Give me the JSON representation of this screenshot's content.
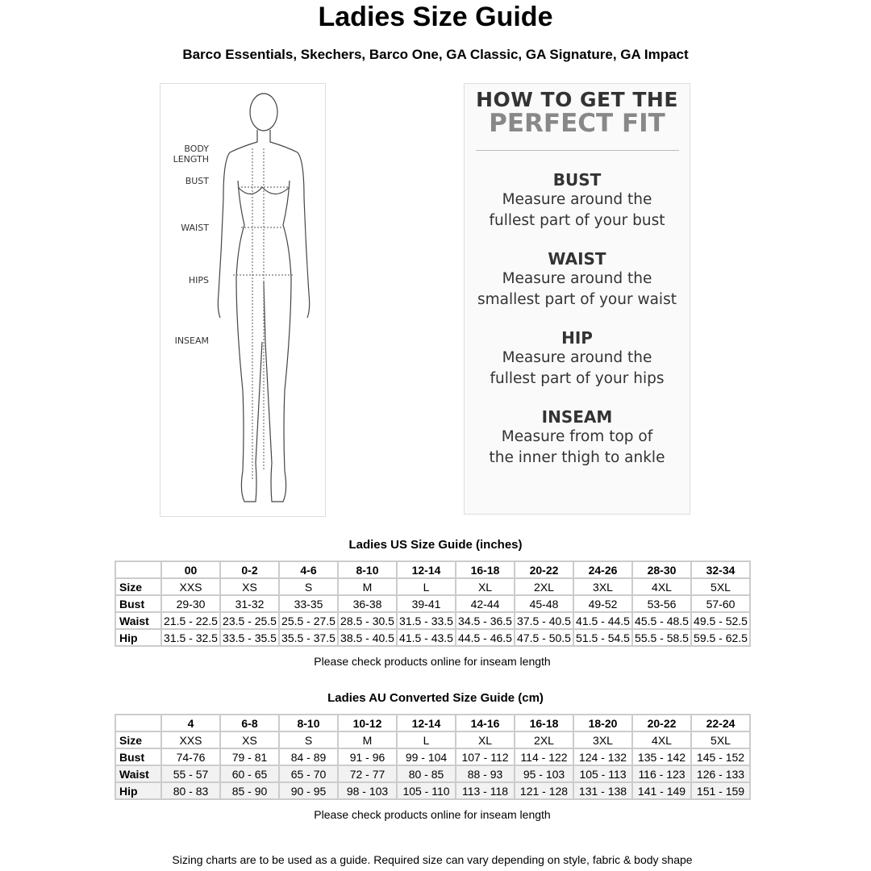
{
  "title": "Ladies Size Guide",
  "subtitle": "Barco Essentials, Skechers, Barco One, GA Classic, GA Signature, GA Impact",
  "figure": {
    "labels": [
      "BODY LENGTH",
      "BUST",
      "WAIST",
      "HIPS",
      "INSEAM"
    ]
  },
  "fit": {
    "heading1": "HOW TO GET THE",
    "heading2": "PERFECT FIT",
    "sections": [
      {
        "title": "BUST",
        "line1": "Measure around the",
        "line2": "fullest part of your bust"
      },
      {
        "title": "WAIST",
        "line1": "Measure around the",
        "line2": "smallest part of your waist"
      },
      {
        "title": "HIP",
        "line1": "Measure around the",
        "line2": "fullest part of your hips"
      },
      {
        "title": "INSEAM",
        "line1": "Measure from top of",
        "line2": "the inner thigh to ankle"
      }
    ]
  },
  "us": {
    "title": "Ladies US Size Guide (inches)",
    "note": "Please check products online for inseam length",
    "header": [
      "00",
      "0-2",
      "4-6",
      "8-10",
      "12-14",
      "16-18",
      "20-22",
      "24-26",
      "28-30",
      "32-34"
    ],
    "rows": [
      {
        "label": "Size",
        "values": [
          "XXS",
          "XS",
          "S",
          "M",
          "L",
          "XL",
          "2XL",
          "3XL",
          "4XL",
          "5XL"
        ]
      },
      {
        "label": "Bust",
        "values": [
          "29-30",
          "31-32",
          "33-35",
          "36-38",
          "39-41",
          "42-44",
          "45-48",
          "49-52",
          "53-56",
          "57-60"
        ]
      },
      {
        "label": "Waist",
        "values": [
          "21.5 - 22.5",
          "23.5 - 25.5",
          "25.5 - 27.5",
          "28.5 - 30.5",
          "31.5 - 33.5",
          "34.5 - 36.5",
          "37.5 - 40.5",
          "41.5 - 44.5",
          "45.5 - 48.5",
          "49.5 - 52.5"
        ]
      },
      {
        "label": "Hip",
        "values": [
          "31.5 - 32.5",
          "33.5 - 35.5",
          "35.5 - 37.5",
          "38.5 - 40.5",
          "41.5 - 43.5",
          "44.5 - 46.5",
          "47.5 - 50.5",
          "51.5 - 54.5",
          "55.5 - 58.5",
          "59.5 - 62.5"
        ]
      }
    ]
  },
  "au": {
    "title": "Ladies AU Converted Size Guide (cm)",
    "note": "Please check products online for inseam length",
    "header": [
      "4",
      "6-8",
      "8-10",
      "10-12",
      "12-14",
      "14-16",
      "16-18",
      "18-20",
      "20-22",
      "22-24"
    ],
    "rows": [
      {
        "label": "Size",
        "values": [
          "XXS",
          "XS",
          "S",
          "M",
          "L",
          "XL",
          "2XL",
          "3XL",
          "4XL",
          "5XL"
        ]
      },
      {
        "label": "Bust",
        "values": [
          "74-76",
          "79 - 81",
          "84 - 89",
          "91 - 96",
          "99 - 104",
          "107 - 112",
          "114 - 122",
          "124 - 132",
          "135 - 142",
          "145 - 152"
        ]
      },
      {
        "label": "Waist",
        "values": [
          "55 - 57",
          "60 - 65",
          "65 - 70",
          "72 - 77",
          "80 - 85",
          "88 - 93",
          "95 - 103",
          "105 - 113",
          "116 - 123",
          "126 - 133"
        ]
      },
      {
        "label": "Hip",
        "values": [
          "80 - 83",
          "85 - 90",
          "90 - 95",
          "98 - 103",
          "105 - 110",
          "113 - 118",
          "121 - 128",
          "131 - 138",
          "141 - 149",
          "151 - 159"
        ]
      }
    ]
  },
  "footer": "Sizing charts are to be used as a guide. Required size can vary depending on style, fabric & body shape"
}
